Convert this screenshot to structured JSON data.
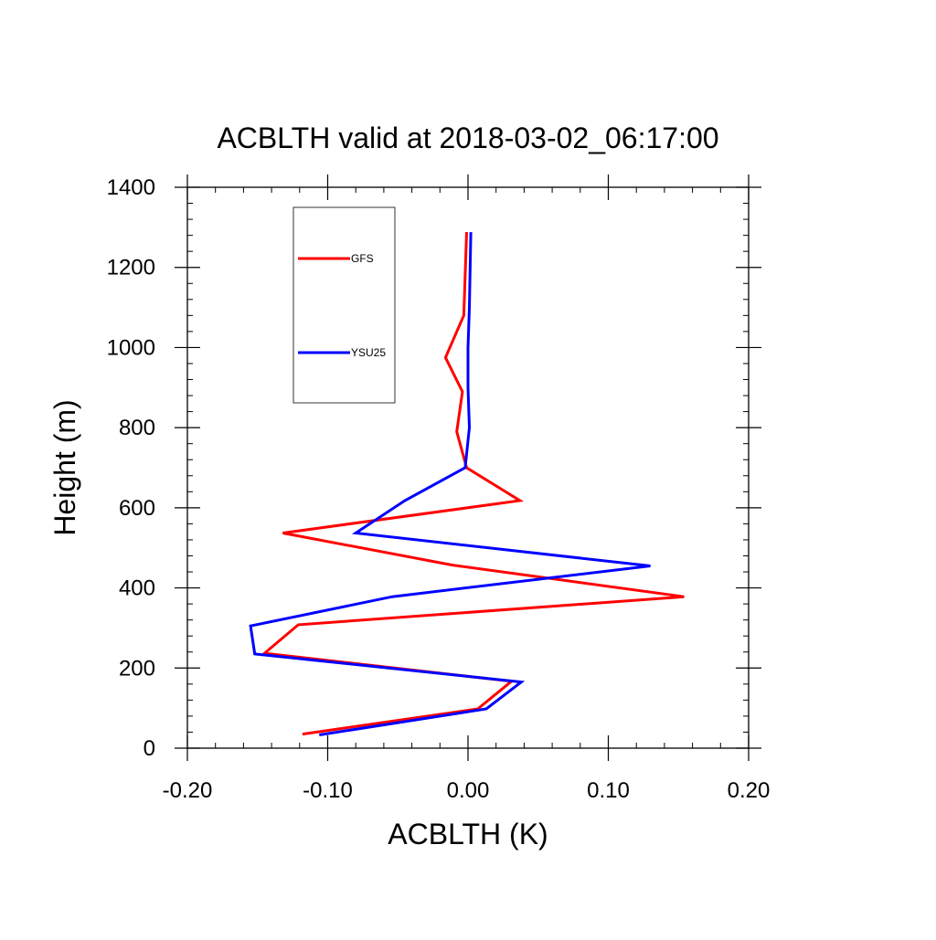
{
  "chart_data": {
    "type": "line",
    "title": "ACBLTH valid at 2018-03-02_06:17:00",
    "xlabel": "ACBLTH (K)",
    "ylabel": "Height (m)",
    "xlim": [
      -0.2,
      0.2
    ],
    "ylim": [
      0,
      1400
    ],
    "xticks": [
      "-0.20",
      "-0.10",
      "0.00",
      "0.10",
      "0.20"
    ],
    "yticks": [
      "0",
      "200",
      "400",
      "600",
      "800",
      "1000",
      "1200",
      "1400"
    ],
    "grid": false,
    "legend_position": "top-left",
    "series": [
      {
        "name": "GFS",
        "color": "#ff0000",
        "points": [
          {
            "x": -0.118,
            "y": 35
          },
          {
            "x": 0.007,
            "y": 98
          },
          {
            "x": 0.031,
            "y": 167
          },
          {
            "x": -0.145,
            "y": 237
          },
          {
            "x": -0.121,
            "y": 308
          },
          {
            "x": 0.154,
            "y": 378
          },
          {
            "x": -0.011,
            "y": 457
          },
          {
            "x": -0.132,
            "y": 537
          },
          {
            "x": 0.037,
            "y": 618
          },
          {
            "x": -0.001,
            "y": 700
          },
          {
            "x": -0.008,
            "y": 790
          },
          {
            "x": -0.004,
            "y": 890
          },
          {
            "x": -0.016,
            "y": 975
          },
          {
            "x": -0.003,
            "y": 1080
          },
          {
            "x": -0.001,
            "y": 1288
          }
        ]
      },
      {
        "name": "YSU25",
        "color": "#0000ff",
        "points": [
          {
            "x": -0.106,
            "y": 33
          },
          {
            "x": 0.013,
            "y": 98
          },
          {
            "x": 0.038,
            "y": 165
          },
          {
            "x": -0.152,
            "y": 235
          },
          {
            "x": -0.155,
            "y": 305
          },
          {
            "x": -0.054,
            "y": 378
          },
          {
            "x": 0.13,
            "y": 455
          },
          {
            "x": -0.08,
            "y": 537
          },
          {
            "x": -0.045,
            "y": 618
          },
          {
            "x": -0.002,
            "y": 700
          },
          {
            "x": 0.001,
            "y": 800
          },
          {
            "x": 0.0,
            "y": 900
          },
          {
            "x": 0.0,
            "y": 1000
          },
          {
            "x": 0.001,
            "y": 1100
          },
          {
            "x": 0.002,
            "y": 1288
          }
        ]
      }
    ]
  }
}
